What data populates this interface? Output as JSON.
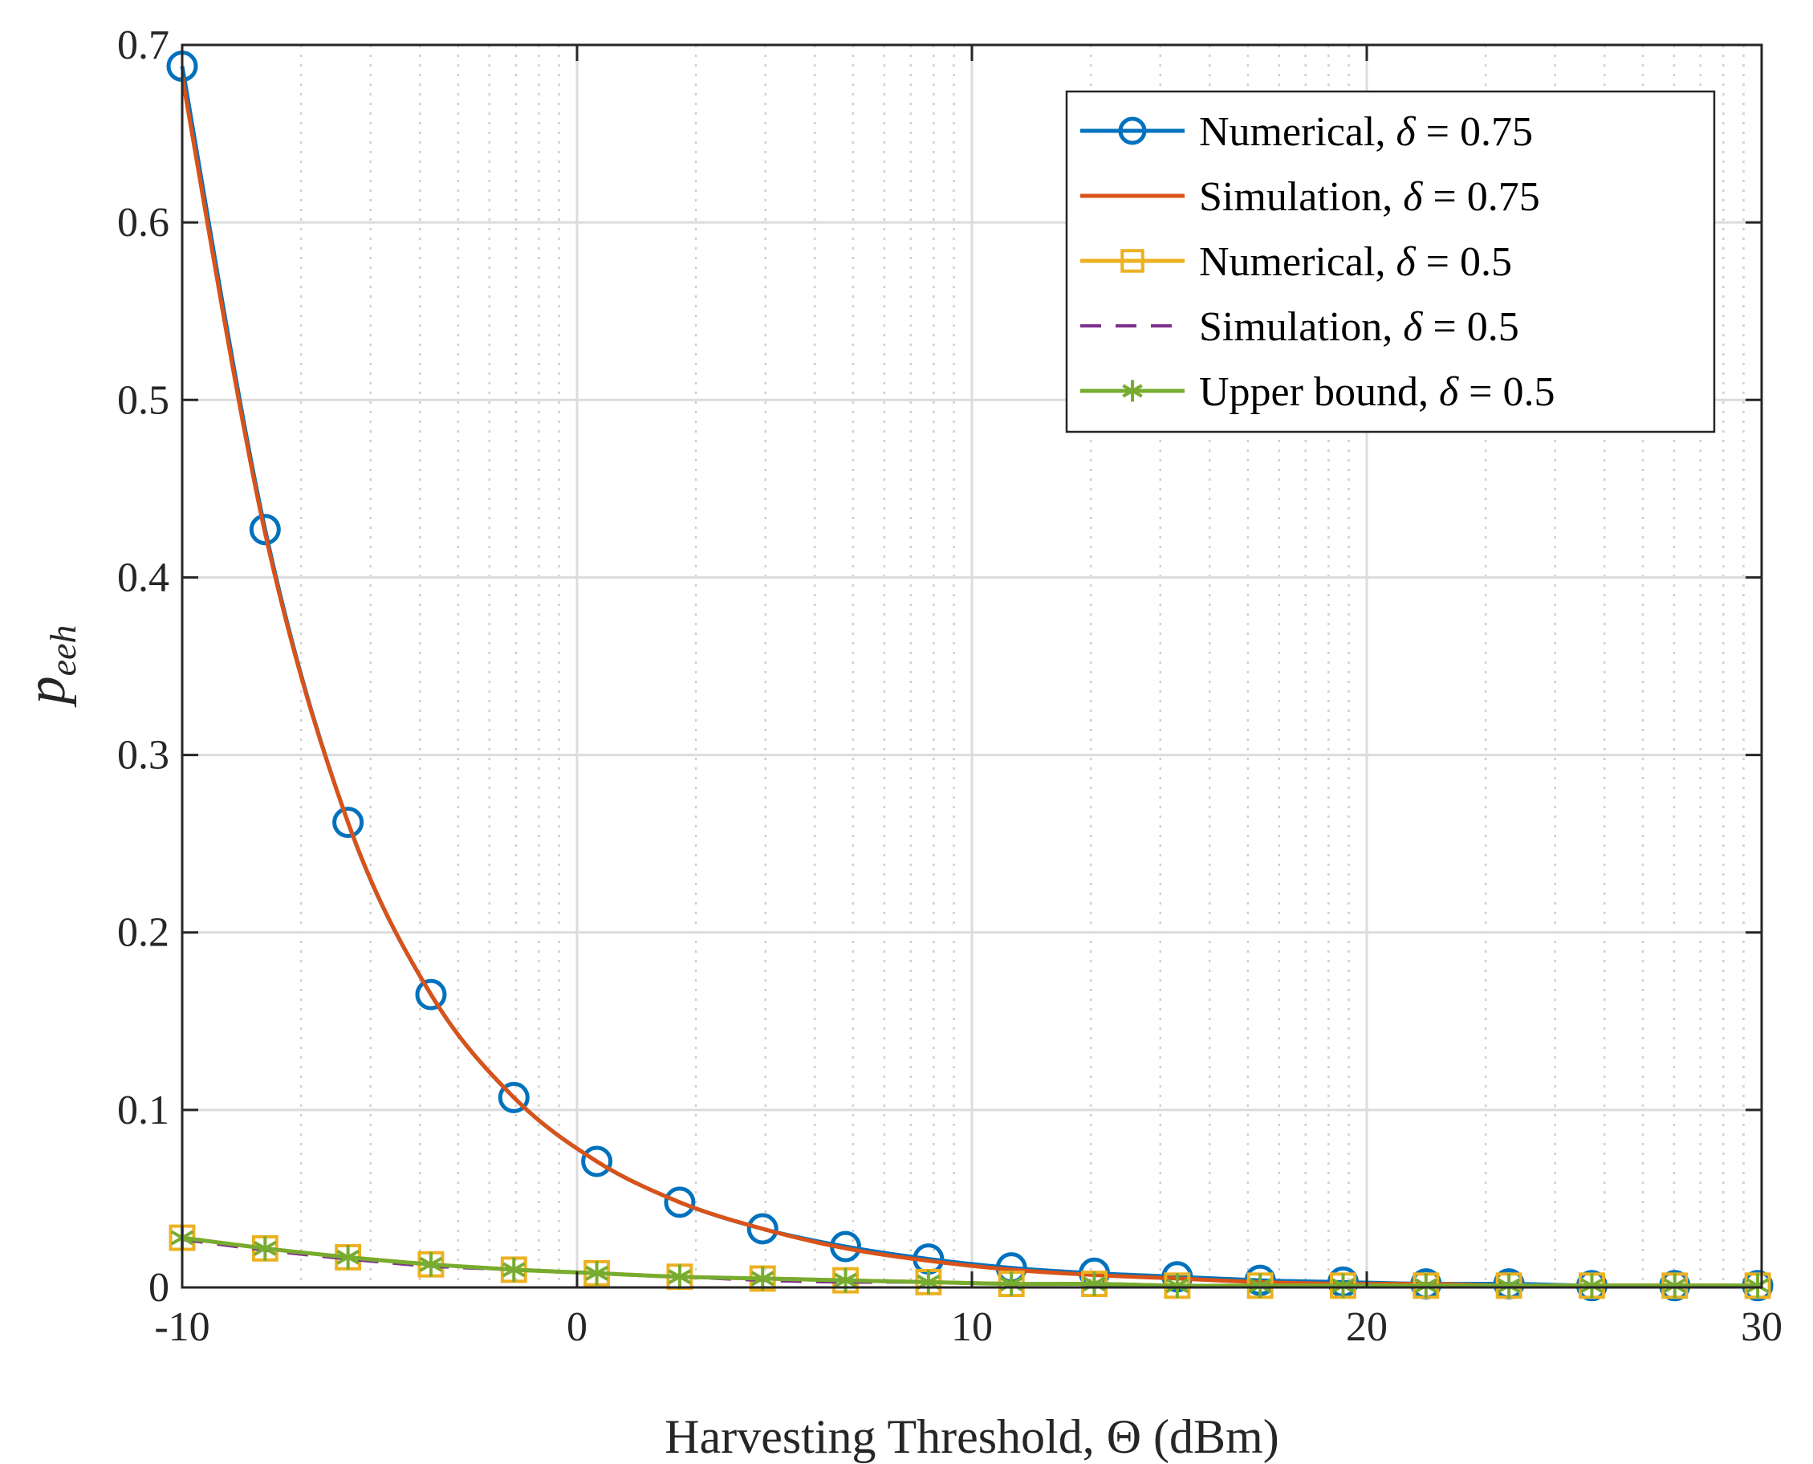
{
  "chart_data": {
    "type": "line",
    "title": "",
    "xlabel": "Harvesting Threshold,  Θ (dBm)",
    "ylabel_main": "p",
    "ylabel_sub": "eeh",
    "xlim": [
      -10,
      30
    ],
    "ylim": [
      0,
      0.7
    ],
    "x_ticks": [
      -10,
      0,
      10,
      20,
      30
    ],
    "x_tick_labels": [
      "-10",
      "0",
      "10",
      "20",
      "30"
    ],
    "y_ticks": [
      0,
      0.1,
      0.2,
      0.3,
      0.4,
      0.5,
      0.6,
      0.7
    ],
    "y_tick_labels": [
      "0",
      "0.1",
      "0.2",
      "0.3",
      "0.4",
      "0.5",
      "0.6",
      "0.7"
    ],
    "grid": true,
    "x_scale_note": "dBm axis drawn with logarithmic minor grid between decades",
    "legend_position": "top-right",
    "series": [
      {
        "name": "Numerical, δ = 0.75",
        "legend_prefix": "Numerical,",
        "legend_value": "0.75",
        "color": "#0072BD",
        "line_style": "solid",
        "marker": "circle",
        "x": [
          -10,
          -7.9,
          -5.8,
          -3.7,
          -1.6,
          0.5,
          2.6,
          4.7,
          6.8,
          8.9,
          11,
          13.1,
          15.2,
          17.3,
          19.4,
          21.5,
          23.6,
          25.7,
          27.8,
          29.9
        ],
        "values": [
          0.688,
          0.427,
          0.262,
          0.165,
          0.107,
          0.071,
          0.048,
          0.033,
          0.023,
          0.016,
          0.011,
          0.008,
          0.006,
          0.004,
          0.003,
          0.002,
          0.002,
          0.001,
          0.001,
          0.001
        ]
      },
      {
        "name": "Simulation, δ = 0.75",
        "legend_prefix": "Simulation,",
        "legend_value": "0.75",
        "color": "#D95319",
        "line_style": "solid",
        "marker": "none",
        "x": [
          -10,
          -7.9,
          -5.8,
          -3.7,
          -1.6,
          0.5,
          2.6,
          4.7,
          6.8,
          8.9,
          11,
          13.1,
          15.2,
          17.3,
          19.4,
          21.5,
          23.6,
          25.7,
          27.8,
          29.9
        ],
        "values": [
          0.682,
          0.425,
          0.262,
          0.165,
          0.107,
          0.071,
          0.048,
          0.033,
          0.022,
          0.015,
          0.01,
          0.007,
          0.005,
          0.003,
          0.002,
          0.002,
          0.001,
          0.001,
          0.001,
          0.001
        ]
      },
      {
        "name": "Numerical, δ = 0.5",
        "legend_prefix": "Numerical,",
        "legend_value": "0.5",
        "color": "#EDB120",
        "line_style": "solid",
        "marker": "square",
        "x": [
          -10,
          -7.9,
          -5.8,
          -3.7,
          -1.6,
          0.5,
          2.6,
          4.7,
          6.8,
          8.9,
          11,
          13.1,
          15.2,
          17.3,
          19.4,
          21.5,
          23.6,
          25.7,
          27.8,
          29.9
        ],
        "values": [
          0.028,
          0.022,
          0.017,
          0.013,
          0.01,
          0.008,
          0.006,
          0.005,
          0.004,
          0.003,
          0.002,
          0.002,
          0.001,
          0.001,
          0.001,
          0.001,
          0.001,
          0.001,
          0.001,
          0.001
        ]
      },
      {
        "name": "Simulation, δ = 0.5",
        "legend_prefix": "Simulation,",
        "legend_value": "0.5",
        "color": "#7E2F8E",
        "line_style": "dashed",
        "marker": "none",
        "x": [
          -10,
          -7.9,
          -5.8,
          -3.7,
          -1.6,
          0.5,
          2.6,
          4.7,
          6.8,
          8.9,
          11,
          13.1,
          15.2,
          17.3,
          19.4,
          21.5,
          23.6,
          25.7,
          27.8,
          29.9
        ],
        "values": [
          0.027,
          0.021,
          0.016,
          0.012,
          0.01,
          0.008,
          0.006,
          0.004,
          0.003,
          0.003,
          0.002,
          0.002,
          0.001,
          0.001,
          0.001,
          0.001,
          0.001,
          0.001,
          0.001,
          0.001
        ]
      },
      {
        "name": "Upper bound, δ = 0.5",
        "legend_prefix": "Upper bound,",
        "legend_value": "0.5",
        "color": "#77AC30",
        "line_style": "solid",
        "marker": "asterisk",
        "x": [
          -10,
          -7.9,
          -5.8,
          -3.7,
          -1.6,
          0.5,
          2.6,
          4.7,
          6.8,
          8.9,
          11,
          13.1,
          15.2,
          17.3,
          19.4,
          21.5,
          23.6,
          25.7,
          27.8,
          29.9
        ],
        "values": [
          0.028,
          0.022,
          0.017,
          0.013,
          0.01,
          0.008,
          0.006,
          0.005,
          0.004,
          0.003,
          0.002,
          0.002,
          0.001,
          0.001,
          0.001,
          0.001,
          0.001,
          0.001,
          0.001,
          0.001
        ]
      }
    ]
  }
}
